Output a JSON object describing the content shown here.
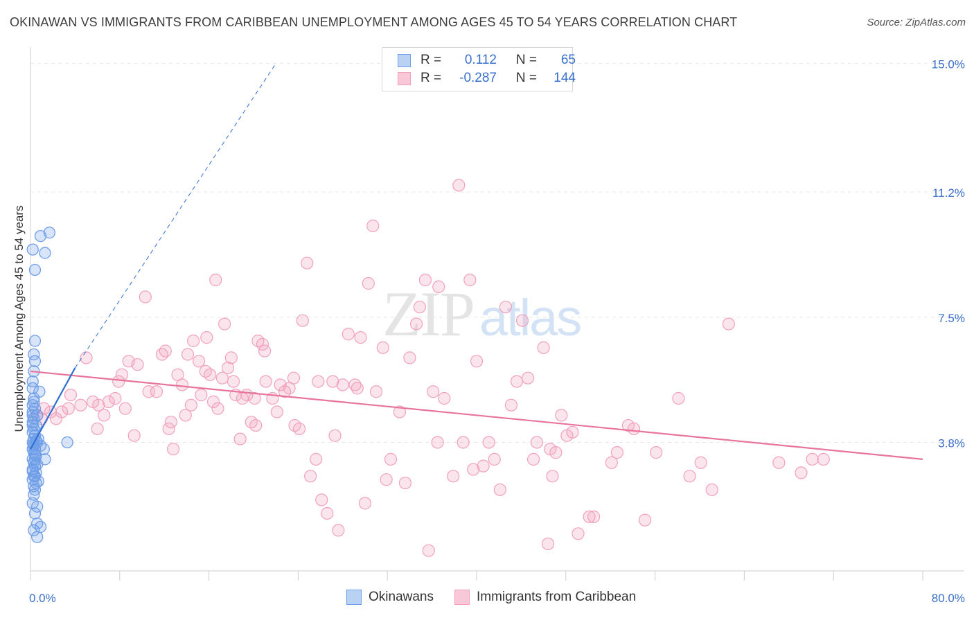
{
  "title": "OKINAWAN VS IMMIGRANTS FROM CARIBBEAN UNEMPLOYMENT AMONG AGES 45 TO 54 YEARS CORRELATION CHART",
  "source": "Source: ZipAtlas.com",
  "watermark": {
    "zip": "ZIP",
    "atlas": "atlas"
  },
  "legend": {
    "okinawan": {
      "r_label": "R =",
      "r_value": "0.112",
      "n_label": "N =",
      "n_value": "65"
    },
    "caribbean": {
      "r_label": "R =",
      "r_value": "-0.287",
      "n_label": "N =",
      "n_value": "144"
    }
  },
  "bottom_legend": {
    "okinawan": "Okinawans",
    "caribbean": "Immigrants from Caribbean"
  },
  "colors": {
    "okinawan": "#6f9ee8",
    "okinawan_line": "#2f6fd1",
    "caribbean": "#f2a0bc",
    "caribbean_line": "#e8749c",
    "axis_text": "#3a6fce",
    "grid": "#e6e6e6"
  },
  "chart_data": {
    "type": "scatter",
    "xlabel": "",
    "ylabel": "Unemployment Among Ages 45 to 54 years",
    "xlim": [
      0,
      80
    ],
    "ylim": [
      0,
      15.3
    ],
    "x_tick_labels": [
      "0.0%",
      "80.0%"
    ],
    "y_ticks": [
      3.8,
      7.5,
      11.2,
      15.0
    ],
    "y_tick_labels": [
      "3.8%",
      "7.5%",
      "11.2%",
      "15.0%"
    ],
    "series": [
      {
        "name": "Okinawans",
        "r": 0.112,
        "n": 65,
        "trend": {
          "x": [
            0,
            4
          ],
          "y": [
            3.6,
            6.0
          ]
        },
        "trend_extension": {
          "x": [
            4,
            22
          ],
          "y": [
            6.0,
            15.0
          ]
        },
        "points": [
          [
            0.2,
            9.5
          ],
          [
            0.4,
            8.9
          ],
          [
            0.9,
            9.9
          ],
          [
            1.7,
            10.0
          ],
          [
            1.3,
            9.4
          ],
          [
            0.4,
            6.8
          ],
          [
            0.3,
            6.4
          ],
          [
            0.4,
            6.2
          ],
          [
            0.3,
            5.9
          ],
          [
            0.2,
            5.6
          ],
          [
            0.2,
            5.4
          ],
          [
            0.8,
            5.3
          ],
          [
            0.3,
            5.1
          ],
          [
            0.2,
            4.9
          ],
          [
            0.4,
            4.8
          ],
          [
            0.2,
            4.6
          ],
          [
            0.3,
            4.5
          ],
          [
            0.2,
            4.4
          ],
          [
            0.5,
            4.3
          ],
          [
            0.3,
            4.2
          ],
          [
            0.2,
            4.1
          ],
          [
            0.4,
            4.0
          ],
          [
            0.3,
            3.9
          ],
          [
            0.5,
            3.85
          ],
          [
            0.2,
            3.8
          ],
          [
            0.6,
            3.8
          ],
          [
            0.3,
            3.75
          ],
          [
            0.9,
            3.7
          ],
          [
            0.2,
            3.6
          ],
          [
            0.4,
            3.6
          ],
          [
            1.2,
            3.6
          ],
          [
            0.3,
            3.5
          ],
          [
            0.5,
            3.4
          ],
          [
            0.2,
            3.3
          ],
          [
            0.4,
            3.3
          ],
          [
            1.3,
            3.3
          ],
          [
            0.3,
            3.2
          ],
          [
            0.4,
            3.1
          ],
          [
            0.2,
            3.0
          ],
          [
            0.5,
            2.9
          ],
          [
            0.3,
            2.8
          ],
          [
            0.4,
            2.8
          ],
          [
            0.2,
            2.7
          ],
          [
            0.5,
            2.6
          ],
          [
            0.3,
            2.5
          ],
          [
            0.4,
            2.4
          ],
          [
            0.2,
            2.0
          ],
          [
            0.6,
            1.9
          ],
          [
            0.4,
            1.7
          ],
          [
            0.6,
            1.4
          ],
          [
            0.9,
            1.3
          ],
          [
            0.3,
            1.2
          ],
          [
            0.6,
            1.0
          ],
          [
            3.3,
            3.8
          ],
          [
            0.3,
            5.0
          ],
          [
            0.2,
            4.7
          ],
          [
            0.6,
            4.6
          ],
          [
            0.2,
            4.3
          ],
          [
            0.7,
            3.9
          ],
          [
            0.3,
            3.7
          ],
          [
            0.4,
            3.45
          ],
          [
            0.6,
            3.15
          ],
          [
            0.2,
            2.95
          ],
          [
            0.7,
            2.65
          ],
          [
            0.3,
            2.25
          ]
        ]
      },
      {
        "name": "Immigrants from Caribbean",
        "r": -0.287,
        "n": 144,
        "trend": {
          "x": [
            0,
            80
          ],
          "y": [
            5.9,
            3.3
          ]
        },
        "points": [
          [
            0.6,
            4.6
          ],
          [
            1.0,
            4.5
          ],
          [
            1.2,
            4.8
          ],
          [
            1.8,
            4.7
          ],
          [
            2.3,
            4.5
          ],
          [
            2.8,
            4.7
          ],
          [
            3.4,
            4.8
          ],
          [
            3.6,
            5.2
          ],
          [
            4.5,
            4.9
          ],
          [
            5.0,
            6.3
          ],
          [
            5.6,
            5.0
          ],
          [
            6.1,
            4.9
          ],
          [
            6.6,
            4.6
          ],
          [
            7.0,
            5.0
          ],
          [
            7.6,
            5.1
          ],
          [
            8.2,
            5.8
          ],
          [
            8.8,
            6.2
          ],
          [
            9.6,
            6.1
          ],
          [
            10.3,
            8.1
          ],
          [
            10.6,
            5.3
          ],
          [
            11.3,
            5.3
          ],
          [
            11.8,
            6.4
          ],
          [
            12.1,
            6.5
          ],
          [
            12.4,
            4.2
          ],
          [
            12.6,
            4.4
          ],
          [
            13.2,
            5.8
          ],
          [
            13.6,
            5.5
          ],
          [
            14.1,
            6.4
          ],
          [
            14.4,
            4.9
          ],
          [
            14.6,
            6.8
          ],
          [
            15.1,
            6.2
          ],
          [
            15.3,
            5.2
          ],
          [
            15.8,
            6.9
          ],
          [
            16.1,
            5.8
          ],
          [
            16.4,
            5.0
          ],
          [
            16.6,
            8.6
          ],
          [
            17.2,
            5.7
          ],
          [
            17.4,
            7.3
          ],
          [
            17.7,
            6.0
          ],
          [
            18.0,
            6.3
          ],
          [
            18.2,
            5.6
          ],
          [
            18.4,
            5.2
          ],
          [
            19.0,
            5.1
          ],
          [
            19.4,
            5.2
          ],
          [
            19.8,
            4.4
          ],
          [
            20.1,
            5.1
          ],
          [
            20.4,
            6.8
          ],
          [
            20.8,
            6.7
          ],
          [
            21.1,
            5.6
          ],
          [
            21.7,
            5.1
          ],
          [
            22.1,
            4.7
          ],
          [
            22.4,
            5.5
          ],
          [
            22.8,
            5.3
          ],
          [
            23.2,
            5.4
          ],
          [
            23.6,
            5.7
          ],
          [
            24.1,
            4.2
          ],
          [
            24.4,
            7.4
          ],
          [
            24.8,
            9.1
          ],
          [
            25.1,
            2.8
          ],
          [
            25.8,
            5.6
          ],
          [
            26.1,
            2.1
          ],
          [
            26.6,
            1.7
          ],
          [
            27.1,
            5.6
          ],
          [
            27.6,
            1.2
          ],
          [
            28.0,
            5.5
          ],
          [
            28.5,
            7.0
          ],
          [
            29.1,
            5.5
          ],
          [
            29.6,
            6.9
          ],
          [
            30.3,
            8.5
          ],
          [
            30.7,
            10.2
          ],
          [
            31.0,
            5.3
          ],
          [
            31.6,
            6.6
          ],
          [
            31.9,
            2.7
          ],
          [
            32.3,
            3.3
          ],
          [
            33.1,
            4.7
          ],
          [
            34.0,
            6.3
          ],
          [
            34.6,
            7.3
          ],
          [
            34.9,
            7.8
          ],
          [
            35.4,
            8.6
          ],
          [
            35.7,
            0.6
          ],
          [
            36.1,
            5.3
          ],
          [
            36.6,
            8.4
          ],
          [
            37.1,
            5.1
          ],
          [
            37.9,
            2.8
          ],
          [
            38.4,
            11.4
          ],
          [
            38.8,
            3.8
          ],
          [
            39.4,
            8.6
          ],
          [
            40.0,
            6.2
          ],
          [
            40.6,
            3.1
          ],
          [
            41.1,
            3.8
          ],
          [
            41.6,
            3.3
          ],
          [
            42.1,
            2.4
          ],
          [
            42.6,
            7.8
          ],
          [
            43.1,
            4.9
          ],
          [
            43.6,
            5.6
          ],
          [
            44.1,
            7.4
          ],
          [
            44.6,
            5.7
          ],
          [
            45.1,
            3.3
          ],
          [
            45.4,
            3.8
          ],
          [
            46.0,
            6.6
          ],
          [
            46.4,
            0.8
          ],
          [
            46.8,
            2.8
          ],
          [
            47.1,
            3.5
          ],
          [
            47.6,
            4.6
          ],
          [
            48.1,
            4.0
          ],
          [
            48.6,
            4.1
          ],
          [
            49.1,
            1.1
          ],
          [
            50.1,
            1.6
          ],
          [
            50.5,
            1.6
          ],
          [
            52.1,
            3.2
          ],
          [
            52.6,
            3.5
          ],
          [
            53.6,
            4.3
          ],
          [
            54.1,
            4.2
          ],
          [
            56.1,
            3.5
          ],
          [
            58.1,
            5.1
          ],
          [
            59.1,
            2.8
          ],
          [
            60.1,
            3.2
          ],
          [
            61.1,
            2.4
          ],
          [
            62.6,
            7.3
          ],
          [
            67.1,
            3.2
          ],
          [
            69.1,
            2.9
          ],
          [
            70.1,
            3.3
          ],
          [
            71.1,
            3.3
          ],
          [
            55.1,
            1.5
          ],
          [
            21.0,
            6.5
          ],
          [
            18.8,
            3.9
          ],
          [
            27.3,
            4.0
          ],
          [
            33.6,
            2.6
          ],
          [
            36.5,
            3.8
          ],
          [
            23.7,
            4.3
          ],
          [
            16.8,
            4.8
          ],
          [
            9.3,
            4.0
          ],
          [
            7.9,
            5.6
          ],
          [
            13.9,
            4.6
          ],
          [
            6.0,
            4.2
          ],
          [
            30.0,
            2.0
          ],
          [
            39.7,
            3.0
          ],
          [
            46.6,
            3.6
          ],
          [
            12.8,
            3.6
          ],
          [
            25.6,
            3.3
          ],
          [
            29.3,
            5.4
          ],
          [
            20.2,
            4.3
          ],
          [
            15.7,
            5.9
          ],
          [
            8.5,
            4.8
          ]
        ]
      }
    ]
  }
}
